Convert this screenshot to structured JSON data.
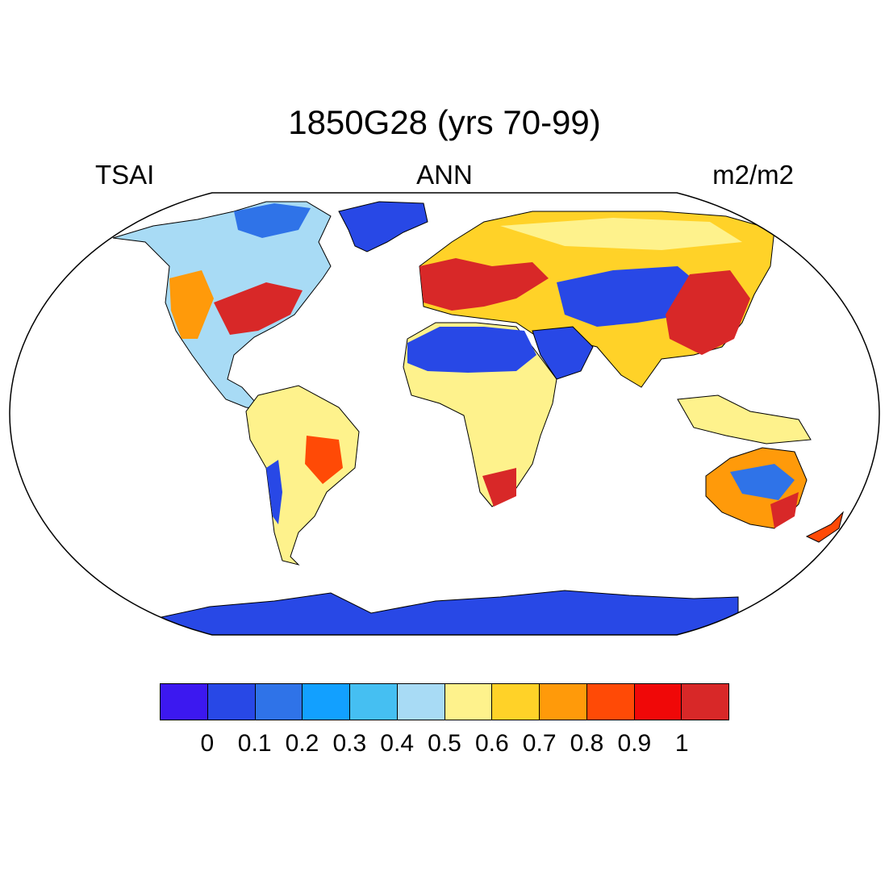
{
  "title": "1850G28 (yrs 70-99)",
  "left_label": "TSAI",
  "center_label": "ANN",
  "right_label": "m2/m2",
  "colorbar": {
    "colors": [
      "#3c18f0",
      "#2848e6",
      "#2f73e8",
      "#12a0ff",
      "#45bff2",
      "#a8dbf5",
      "#fef28c",
      "#ffd228",
      "#ff9a0a",
      "#ff4a06",
      "#f00808",
      "#d82828"
    ],
    "tick_labels": [
      "0",
      "0.1",
      "0.2",
      "0.3",
      "0.4",
      "0.5",
      "0.6",
      "0.7",
      "0.8",
      "0.9",
      "1"
    ]
  },
  "colors": {
    "land_low": "#2848e6",
    "land_mid": "#fef28c",
    "land_high": "#d82828",
    "ocean": "#ffffff"
  }
}
